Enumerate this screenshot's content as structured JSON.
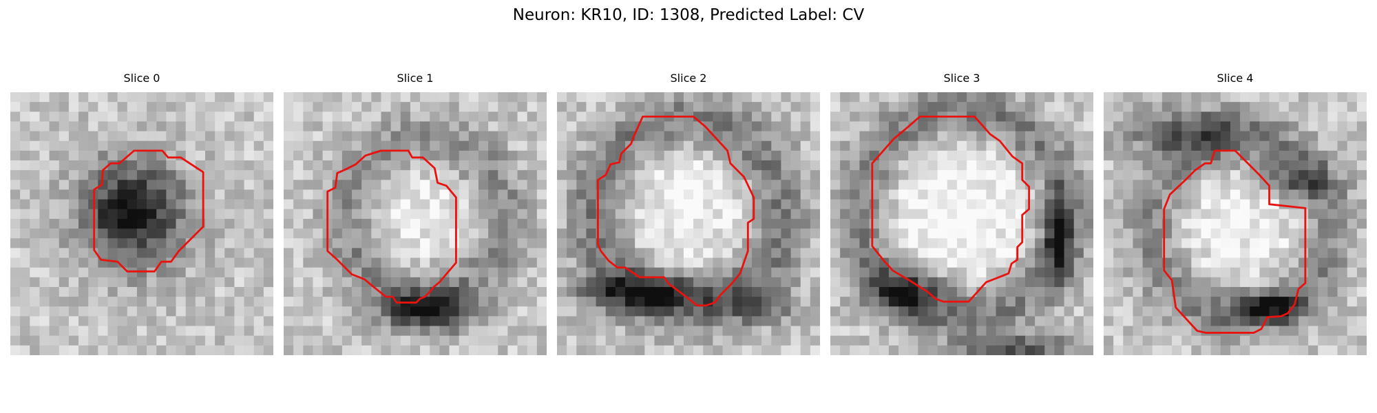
{
  "figure": {
    "title": "Neuron: KR10, ID: 1308, Predicted Label: CV",
    "outline_color": "#e8130f",
    "colormap": "grayscale",
    "grid_size": 27,
    "panels": [
      {
        "label": "Slice 0",
        "seed": 11,
        "blob": {
          "cx": 12.5,
          "cy": 12.5,
          "r": 5.4,
          "depth": 0.75
        },
        "ring": null,
        "bands": []
      },
      {
        "label": "Slice 1",
        "seed": 23,
        "blob": {
          "cx": 14.5,
          "cy": 12.5,
          "r": 6.0,
          "depth": -0.15
        },
        "ring": {
          "cx": 14.5,
          "cy": 13.0,
          "r": 8.0,
          "w": 2.0,
          "depth": 0.28
        },
        "bands": [
          {
            "cx": 15.0,
            "cy": 22.5,
            "rx": 4.5,
            "ry": 2.0,
            "depth": 0.65
          }
        ]
      },
      {
        "label": "Slice 2",
        "seed": 37,
        "blob": {
          "cx": 13.5,
          "cy": 11.5,
          "r": 7.5,
          "depth": -0.2
        },
        "ring": {
          "cx": 13.5,
          "cy": 12.5,
          "r": 9.5,
          "w": 2.2,
          "depth": 0.35
        },
        "bands": [
          {
            "cx": 9.0,
            "cy": 20.5,
            "rx": 7.0,
            "ry": 2.0,
            "depth": 0.55
          },
          {
            "cx": 21.0,
            "cy": 22.0,
            "rx": 4.0,
            "ry": 2.0,
            "depth": 0.3
          }
        ]
      },
      {
        "label": "Slice 3",
        "seed": 41,
        "blob": {
          "cx": 13.5,
          "cy": 12.5,
          "r": 8.5,
          "depth": -0.25
        },
        "ring": {
          "cx": 13.5,
          "cy": 12.5,
          "r": 10.5,
          "w": 2.0,
          "depth": 0.35
        },
        "bands": [
          {
            "cx": 8.0,
            "cy": 20.5,
            "rx": 4.0,
            "ry": 2.2,
            "depth": 0.55
          },
          {
            "cx": 23.5,
            "cy": 15.0,
            "rx": 1.6,
            "ry": 4.5,
            "depth": 0.5
          },
          {
            "cx": 19.5,
            "cy": 26.2,
            "rx": 6.0,
            "ry": 1.2,
            "depth": 0.45
          }
        ]
      },
      {
        "label": "Slice 4",
        "seed": 57,
        "blob": {
          "cx": 14.0,
          "cy": 13.5,
          "r": 7.0,
          "depth": -0.2
        },
        "ring": {
          "cx": 14.0,
          "cy": 14.0,
          "r": 9.0,
          "w": 2.0,
          "depth": 0.3
        },
        "bands": [
          {
            "cx": 8.0,
            "cy": 4.0,
            "rx": 7.0,
            "ry": 2.5,
            "depth": 0.4
          },
          {
            "cx": 17.0,
            "cy": 22.0,
            "rx": 4.0,
            "ry": 1.6,
            "depth": 0.6
          },
          {
            "cx": 20.0,
            "cy": 9.0,
            "rx": 4.0,
            "ry": 2.0,
            "depth": 0.35
          }
        ]
      }
    ],
    "contours": [
      [
        [
          12.7,
          6.0
        ],
        [
          15.6,
          6.0
        ],
        [
          16.2,
          6.7
        ],
        [
          17.5,
          6.7
        ],
        [
          19.8,
          8.2
        ],
        [
          19.8,
          13.8
        ],
        [
          17.3,
          16.3
        ],
        [
          16.5,
          17.4
        ],
        [
          15.5,
          17.4
        ],
        [
          14.8,
          18.4
        ],
        [
          12.0,
          18.4
        ],
        [
          11.0,
          17.4
        ],
        [
          9.3,
          17.2
        ],
        [
          8.6,
          16.2
        ],
        [
          8.6,
          10.0
        ],
        [
          9.4,
          9.5
        ],
        [
          9.5,
          8.0
        ],
        [
          10.3,
          7.3
        ],
        [
          11.2,
          7.3
        ]
      ],
      [
        [
          10.0,
          6.0
        ],
        [
          12.8,
          6.0
        ],
        [
          13.2,
          6.7
        ],
        [
          14.3,
          6.7
        ],
        [
          15.5,
          7.8
        ],
        [
          15.8,
          9.3
        ],
        [
          16.7,
          9.6
        ],
        [
          17.7,
          10.8
        ],
        [
          17.7,
          17.5
        ],
        [
          16.0,
          19.5
        ],
        [
          15.4,
          20.0
        ],
        [
          15.0,
          20.5
        ],
        [
          14.5,
          21.0
        ],
        [
          14.0,
          21.2
        ],
        [
          13.6,
          21.6
        ],
        [
          11.6,
          21.6
        ],
        [
          11.2,
          21.0
        ],
        [
          10.5,
          21.0
        ],
        [
          9.5,
          20.2
        ],
        [
          9.0,
          19.8
        ],
        [
          8.3,
          19.2
        ],
        [
          7.0,
          18.7
        ],
        [
          5.5,
          17.2
        ],
        [
          4.5,
          16.3
        ],
        [
          4.5,
          10.2
        ],
        [
          5.3,
          9.8
        ],
        [
          5.5,
          8.3
        ],
        [
          6.2,
          8.0
        ],
        [
          7.4,
          7.4
        ],
        [
          8.4,
          6.5
        ]
      ],
      [
        [
          8.8,
          2.5
        ],
        [
          14.0,
          2.5
        ],
        [
          15.2,
          3.5
        ],
        [
          17.5,
          6.0
        ],
        [
          17.8,
          7.3
        ],
        [
          19.2,
          8.7
        ],
        [
          20.2,
          10.8
        ],
        [
          20.2,
          13.0
        ],
        [
          19.6,
          13.4
        ],
        [
          19.6,
          16.3
        ],
        [
          18.8,
          18.6
        ],
        [
          17.9,
          19.7
        ],
        [
          16.8,
          20.8
        ],
        [
          16.2,
          21.6
        ],
        [
          15.3,
          21.9
        ],
        [
          14.4,
          21.9
        ],
        [
          13.0,
          20.8
        ],
        [
          11.5,
          19.7
        ],
        [
          11.0,
          19.0
        ],
        [
          8.5,
          19.0
        ],
        [
          7.0,
          18.0
        ],
        [
          6.2,
          18.0
        ],
        [
          5.3,
          17.3
        ],
        [
          4.5,
          16.3
        ],
        [
          4.2,
          15.6
        ],
        [
          4.2,
          9.0
        ],
        [
          5.0,
          8.5
        ],
        [
          5.5,
          7.4
        ],
        [
          6.4,
          7.2
        ],
        [
          6.6,
          6.3
        ],
        [
          7.6,
          5.3
        ],
        [
          7.9,
          4.5
        ]
      ],
      [
        [
          9.2,
          2.5
        ],
        [
          14.8,
          2.5
        ],
        [
          16.4,
          4.3
        ],
        [
          17.4,
          5.0
        ],
        [
          18.7,
          6.6
        ],
        [
          19.7,
          7.3
        ],
        [
          19.7,
          9.0
        ],
        [
          20.4,
          9.7
        ],
        [
          20.4,
          12.0
        ],
        [
          19.7,
          12.6
        ],
        [
          19.7,
          15.4
        ],
        [
          19.2,
          15.9
        ],
        [
          19.2,
          17.2
        ],
        [
          18.6,
          17.6
        ],
        [
          18.3,
          18.6
        ],
        [
          17.3,
          19.0
        ],
        [
          16.0,
          19.5
        ],
        [
          15.2,
          20.4
        ],
        [
          14.2,
          21.5
        ],
        [
          11.6,
          21.5
        ],
        [
          10.8,
          21.2
        ],
        [
          10.0,
          20.5
        ],
        [
          9.2,
          20.0
        ],
        [
          8.1,
          19.3
        ],
        [
          7.4,
          18.9
        ],
        [
          6.4,
          18.3
        ],
        [
          5.5,
          17.3
        ],
        [
          4.3,
          15.8
        ],
        [
          4.3,
          7.3
        ],
        [
          6.5,
          4.8
        ],
        [
          7.7,
          3.8
        ]
      ],
      [
        [
          11.4,
          6.0
        ],
        [
          13.5,
          6.0
        ],
        [
          14.4,
          6.9
        ],
        [
          16.0,
          8.5
        ],
        [
          17.0,
          9.6
        ],
        [
          17.0,
          11.5
        ],
        [
          20.7,
          11.9
        ],
        [
          20.7,
          19.6
        ],
        [
          20.0,
          20.2
        ],
        [
          19.6,
          21.8
        ],
        [
          18.9,
          22.7
        ],
        [
          18.2,
          23.0
        ],
        [
          16.8,
          23.1
        ],
        [
          16.2,
          24.3
        ],
        [
          15.4,
          24.7
        ],
        [
          12.7,
          24.7
        ],
        [
          10.5,
          24.7
        ],
        [
          9.6,
          24.5
        ],
        [
          7.4,
          22.1
        ],
        [
          7.0,
          19.3
        ],
        [
          6.2,
          18.3
        ],
        [
          6.2,
          12.0
        ],
        [
          6.8,
          10.5
        ],
        [
          8.4,
          9.0
        ],
        [
          9.4,
          8.0
        ],
        [
          10.4,
          7.3
        ],
        [
          11.0,
          7.3
        ]
      ]
    ]
  }
}
